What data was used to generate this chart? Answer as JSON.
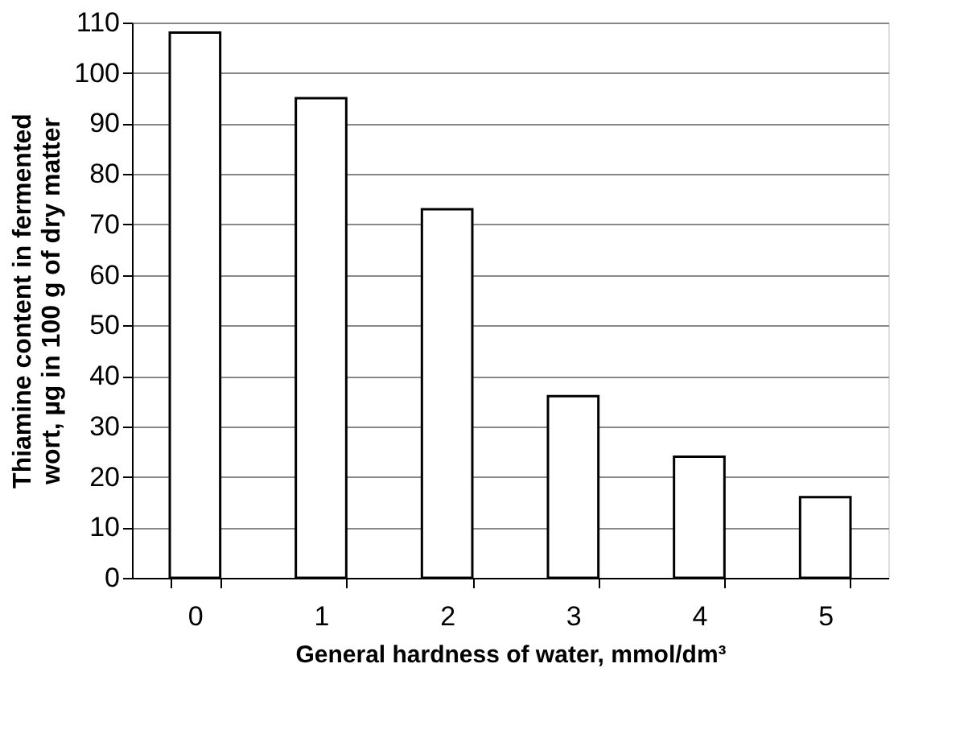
{
  "chart_data": {
    "type": "bar",
    "categories": [
      "0",
      "1",
      "2",
      "3",
      "4",
      "5"
    ],
    "values": [
      108,
      95,
      73,
      36,
      24,
      16
    ],
    "color": "#ffffff",
    "xlabel": "General hardness of water, mmol/dm³",
    "ylabel": "Thiamine content in fermented\nwort, µg in 100 g of dry matter",
    "ylim": [
      0,
      110
    ],
    "yticks": [
      0,
      10,
      20,
      30,
      40,
      50,
      60,
      70,
      80,
      90,
      100,
      110
    ],
    "grid": "y"
  }
}
